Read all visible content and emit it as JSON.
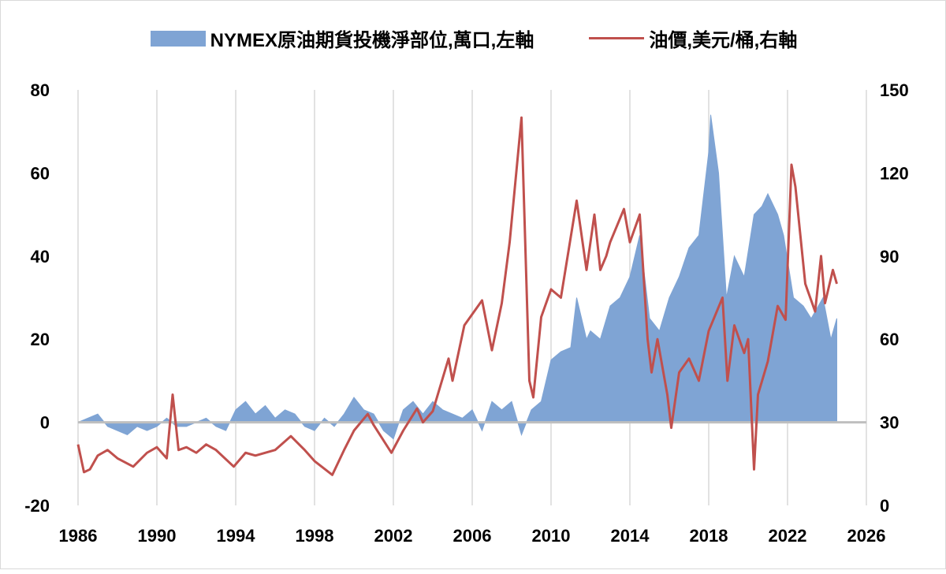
{
  "chart_data": {
    "type": "area+line",
    "title": "",
    "legend_position": "top",
    "grid": "vertical",
    "x_ticks": [
      "1986",
      "1990",
      "1994",
      "1998",
      "2002",
      "2006",
      "2010",
      "2014",
      "2018",
      "2022",
      "2026"
    ],
    "xlim": [
      1986,
      2026
    ],
    "y_left": {
      "ticks": [
        "80",
        "60",
        "40",
        "20",
        "0",
        "-20"
      ],
      "ylim": [
        -20,
        80
      ]
    },
    "y_right": {
      "ticks": [
        "150",
        "120",
        "90",
        "60",
        "30",
        "0"
      ],
      "ylim": [
        0,
        150
      ]
    },
    "colors": {
      "area": "#7fa4d4",
      "line": "#c0504d",
      "grid": "#d9d9d9",
      "zero_axis": "#bfbfbf",
      "negative_tick": "#ff0000"
    },
    "series": [
      {
        "name": "NYMEX原油期貨投機淨部位,萬口,左軸",
        "axis": "left",
        "type": "area",
        "x": [
          1986,
          1986.5,
          1987,
          1987.5,
          1988,
          1988.5,
          1989,
          1989.5,
          1990,
          1990.5,
          1991,
          1991.5,
          1992,
          1992.5,
          1993,
          1993.5,
          1994,
          1994.5,
          1995,
          1995.5,
          1996,
          1996.5,
          1997,
          1997.5,
          1998,
          1998.5,
          1999,
          1999.5,
          2000,
          2000.5,
          2001,
          2001.5,
          2002,
          2002.5,
          2003,
          2003.5,
          2004,
          2004.5,
          2005,
          2005.5,
          2006,
          2006.5,
          2007,
          2007.5,
          2008,
          2008.5,
          2009,
          2009.5,
          2010,
          2010.5,
          2011,
          2011.3,
          2011.8,
          2012,
          2012.5,
          2013,
          2013.5,
          2014,
          2014.5,
          2015,
          2015.5,
          2016,
          2016.5,
          2017,
          2017.5,
          2018,
          2018.1,
          2018.5,
          2018.9,
          2019.3,
          2019.8,
          2020.3,
          2020.7,
          2021,
          2021.5,
          2021.8,
          2022.3,
          2022.8,
          2023.2,
          2023.8,
          2024.2,
          2024.5
        ],
        "values": [
          0,
          1,
          2,
          -1,
          -2,
          -3,
          -1,
          -2,
          -1,
          1,
          -1,
          -1,
          0,
          1,
          -1,
          -2,
          3,
          5,
          2,
          4,
          1,
          3,
          2,
          -1,
          -2,
          1,
          -1,
          2,
          6,
          3,
          2,
          -2,
          -4,
          3,
          5,
          2,
          5,
          3,
          2,
          1,
          3,
          -2,
          5,
          3,
          5,
          -3,
          3,
          5,
          15,
          17,
          18,
          30,
          20,
          22,
          20,
          28,
          30,
          35,
          45,
          25,
          22,
          30,
          35,
          42,
          45,
          65,
          74,
          60,
          30,
          40,
          35,
          50,
          52,
          55,
          50,
          45,
          30,
          28,
          25,
          30,
          20,
          25
        ]
      },
      {
        "name": "油價,美元/桶,右軸",
        "axis": "right",
        "type": "line",
        "x": [
          1986,
          1986.3,
          1986.6,
          1987,
          1987.5,
          1988,
          1988.8,
          1989.5,
          1990,
          1990.5,
          1990.8,
          1991.1,
          1991.5,
          1992,
          1992.5,
          1993,
          1993.9,
          1994.5,
          1995,
          1996,
          1996.8,
          1997.5,
          1998,
          1998.9,
          1999.5,
          2000,
          2000.7,
          2001,
          2001.9,
          2002.5,
          2003.2,
          2003.5,
          2004,
          2004.8,
          2005,
          2005.6,
          2006.5,
          2007,
          2007.5,
          2007.9,
          2008.5,
          2008.9,
          2009.1,
          2009.5,
          2010,
          2010.5,
          2011.3,
          2011.8,
          2012.2,
          2012.5,
          2012.8,
          2013,
          2013.7,
          2014,
          2014.5,
          2014.9,
          2015.1,
          2015.4,
          2015.9,
          2016.1,
          2016.5,
          2017,
          2017.5,
          2018,
          2018.7,
          2018.95,
          2019.3,
          2019.8,
          2020,
          2020.3,
          2020.5,
          2021,
          2021.5,
          2021.9,
          2022.2,
          2022.4,
          2022.9,
          2023,
          2023.4,
          2023.7,
          2023.9,
          2024.3,
          2024.5
        ],
        "values": [
          22,
          12,
          13,
          18,
          20,
          17,
          14,
          19,
          21,
          17,
          40,
          20,
          21,
          19,
          22,
          20,
          14,
          19,
          18,
          20,
          25,
          20,
          16,
          11,
          20,
          27,
          33,
          29,
          19,
          27,
          35,
          30,
          34,
          53,
          45,
          65,
          74,
          56,
          73,
          95,
          140,
          45,
          39,
          68,
          78,
          75,
          110,
          85,
          105,
          85,
          90,
          95,
          107,
          95,
          105,
          60,
          48,
          60,
          40,
          28,
          48,
          53,
          45,
          63,
          75,
          45,
          65,
          55,
          60,
          13,
          40,
          52,
          72,
          67,
          123,
          115,
          80,
          78,
          70,
          90,
          73,
          85,
          80
        ]
      }
    ]
  }
}
